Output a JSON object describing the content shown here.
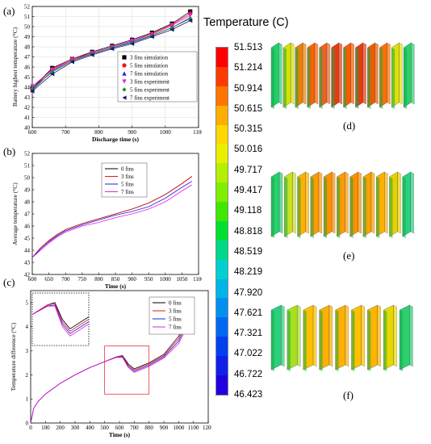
{
  "chart_data": [
    {
      "panel_label": "(a)",
      "type": "scatter",
      "xlabel": "Discharge time (s)",
      "ylabel": "Battery highest temperature (°C)",
      "xlim": [
        600,
        1100
      ],
      "ylim": [
        40,
        52
      ],
      "xticks": [
        600,
        700,
        800,
        900,
        1000,
        1100
      ],
      "yticks": [
        40,
        41,
        42,
        43,
        44,
        45,
        46,
        47,
        48,
        49,
        50,
        51,
        52
      ],
      "grid": true,
      "legend_position": "bottom-right",
      "x": [
        600,
        660,
        720,
        780,
        840,
        900,
        960,
        1020,
        1075
      ],
      "series": [
        {
          "name": "3 fins  simulation",
          "marker": "square",
          "color": "#000000",
          "values": [
            43.9,
            45.9,
            46.8,
            47.5,
            48.1,
            48.7,
            49.4,
            50.3,
            51.5
          ]
        },
        {
          "name": "5 fins  simulation",
          "marker": "circle",
          "color": "#e8141c",
          "values": [
            43.8,
            45.8,
            46.8,
            47.4,
            48.0,
            48.6,
            49.3,
            50.2,
            51.3
          ]
        },
        {
          "name": "7 fins  simulation",
          "marker": "triangle-up",
          "color": "#1f1fe0",
          "values": [
            43.7,
            45.6,
            46.7,
            47.3,
            47.9,
            48.5,
            49.1,
            49.9,
            50.9
          ]
        },
        {
          "name": "3 fins  experiment",
          "marker": "triangle-down",
          "color": "#e020e0",
          "values": [
            44.1,
            45.7,
            46.7,
            47.4,
            48.0,
            48.6,
            49.2,
            50.1,
            51.1
          ]
        },
        {
          "name": "5 fins  experiment",
          "marker": "diamond",
          "color": "#1f8a2a",
          "values": [
            43.9,
            45.5,
            46.6,
            47.3,
            47.9,
            48.4,
            49.1,
            49.9,
            50.8
          ]
        },
        {
          "name": "7 fins  experiment",
          "marker": "triangle-left",
          "color": "#1a1a6e",
          "values": [
            43.6,
            45.3,
            46.5,
            47.2,
            47.8,
            48.3,
            49.0,
            49.7,
            50.6
          ]
        }
      ]
    },
    {
      "panel_label": "(b)",
      "type": "line",
      "xlabel": "Time (s)",
      "ylabel": "Average temperature (°C)",
      "xlim": [
        600,
        1100
      ],
      "ylim": [
        42,
        52
      ],
      "xticks": [
        600,
        650,
        700,
        750,
        800,
        850,
        900,
        950,
        1000,
        1050,
        1100
      ],
      "yticks": [
        42,
        43,
        44,
        45,
        46,
        47,
        48,
        49,
        50,
        51,
        52
      ],
      "grid": false,
      "legend_position": "top-center",
      "x": [
        600,
        625,
        650,
        675,
        700,
        750,
        800,
        850,
        900,
        950,
        1000,
        1050,
        1080
      ],
      "series": [
        {
          "name": "0 fins",
          "color": "#000000",
          "values": [
            43.4,
            44.2,
            44.8,
            45.3,
            45.7,
            46.2,
            46.6,
            47.0,
            47.4,
            47.9,
            48.6,
            49.5,
            50.1
          ]
        },
        {
          "name": "3 fins",
          "color": "#e8141c",
          "values": [
            43.4,
            44.2,
            44.8,
            45.3,
            45.7,
            46.2,
            46.6,
            47.0,
            47.4,
            47.9,
            48.6,
            49.5,
            50.1
          ]
        },
        {
          "name": "5 fins",
          "color": "#1f1fe0",
          "values": [
            43.4,
            44.1,
            44.7,
            45.2,
            45.6,
            46.1,
            46.5,
            46.9,
            47.2,
            47.6,
            48.3,
            49.2,
            49.7
          ]
        },
        {
          "name": "7 fins",
          "color": "#e020e0",
          "values": [
            43.4,
            44.0,
            44.6,
            45.1,
            45.5,
            46.0,
            46.3,
            46.7,
            47.0,
            47.4,
            48.0,
            48.9,
            49.4
          ]
        }
      ]
    },
    {
      "panel_label": "(c)",
      "type": "line",
      "xlabel": "Time (s)",
      "ylabel": "Temperature difference (°C)",
      "xlim": [
        0,
        1200
      ],
      "ylim": [
        0,
        5.5
      ],
      "xticks": [
        0,
        100,
        200,
        300,
        400,
        500,
        600,
        700,
        800,
        900,
        1000,
        1100,
        1200
      ],
      "yticks": [
        0,
        1,
        2,
        3,
        4,
        5
      ],
      "grid": false,
      "legend_position": "top-right",
      "x": [
        0,
        20,
        50,
        100,
        200,
        300,
        400,
        500,
        580,
        620,
        660,
        700,
        800,
        900,
        1000,
        1080
      ],
      "series": [
        {
          "name": "0 fins",
          "color": "#000000",
          "values": [
            0.0,
            0.6,
            0.9,
            1.2,
            1.65,
            2.0,
            2.3,
            2.55,
            2.75,
            2.8,
            2.45,
            2.25,
            2.5,
            2.85,
            3.6,
            4.65
          ]
        },
        {
          "name": "3 fins",
          "color": "#e8141c",
          "values": [
            0.0,
            0.6,
            0.9,
            1.2,
            1.65,
            2.0,
            2.3,
            2.55,
            2.75,
            2.78,
            2.4,
            2.2,
            2.45,
            2.8,
            3.5,
            4.5
          ]
        },
        {
          "name": "5 fins",
          "color": "#1f1fe0",
          "values": [
            0.0,
            0.6,
            0.9,
            1.2,
            1.65,
            2.0,
            2.3,
            2.55,
            2.73,
            2.75,
            2.35,
            2.15,
            2.4,
            2.75,
            3.4,
            4.4
          ]
        },
        {
          "name": "7 fins",
          "color": "#e020e0",
          "values": [
            0.0,
            0.6,
            0.9,
            1.2,
            1.65,
            2.0,
            2.3,
            2.55,
            2.72,
            2.73,
            2.3,
            2.1,
            2.35,
            2.7,
            3.3,
            4.3
          ]
        }
      ]
    }
  ],
  "colorbar": {
    "title": "Temperature (C)",
    "ticks": [
      "51.513",
      "51.214",
      "50.914",
      "50.615",
      "50.315",
      "50.016",
      "49.717",
      "49.417",
      "49.118",
      "48.818",
      "48.519",
      "48.219",
      "47.920",
      "47.621",
      "47.321",
      "47.022",
      "46.722",
      "46.423"
    ],
    "colors": [
      "#ff0000",
      "#ff3a00",
      "#ff7400",
      "#ffae00",
      "#ffd700",
      "#e8f000",
      "#b5f000",
      "#80ee00",
      "#40e800",
      "#00e030",
      "#00d88a",
      "#00d0d0",
      "#00b4e8",
      "#0090f0",
      "#0068f0",
      "#0040f0",
      "#1020e8",
      "#2000e0"
    ]
  },
  "renderings": [
    {
      "label": "(d)",
      "fin_colors": [
        "#1fcf6a",
        "#d8e000",
        "#f08000",
        "#ff6000",
        "#f06020",
        "#e83a10",
        "#ff5a00",
        "#e83a10",
        "#f05a00",
        "#ff7000",
        "#e0e000",
        "#2bd06a"
      ]
    },
    {
      "label": "(e)",
      "fin_colors": [
        "#28d06e",
        "#c8e020",
        "#ffb000",
        "#ff9a00",
        "#ff9000",
        "#ff9a00",
        "#ff9000",
        "#ffa000",
        "#ffb000",
        "#e8d000",
        "#2bd080"
      ]
    },
    {
      "label": "(f)",
      "fin_colors": [
        "#2ad07a",
        "#a8e020",
        "#ffc000",
        "#ffb000",
        "#ffb000",
        "#ffc000",
        "#ffb400",
        "#e8d800",
        "#2bd070"
      ]
    }
  ]
}
